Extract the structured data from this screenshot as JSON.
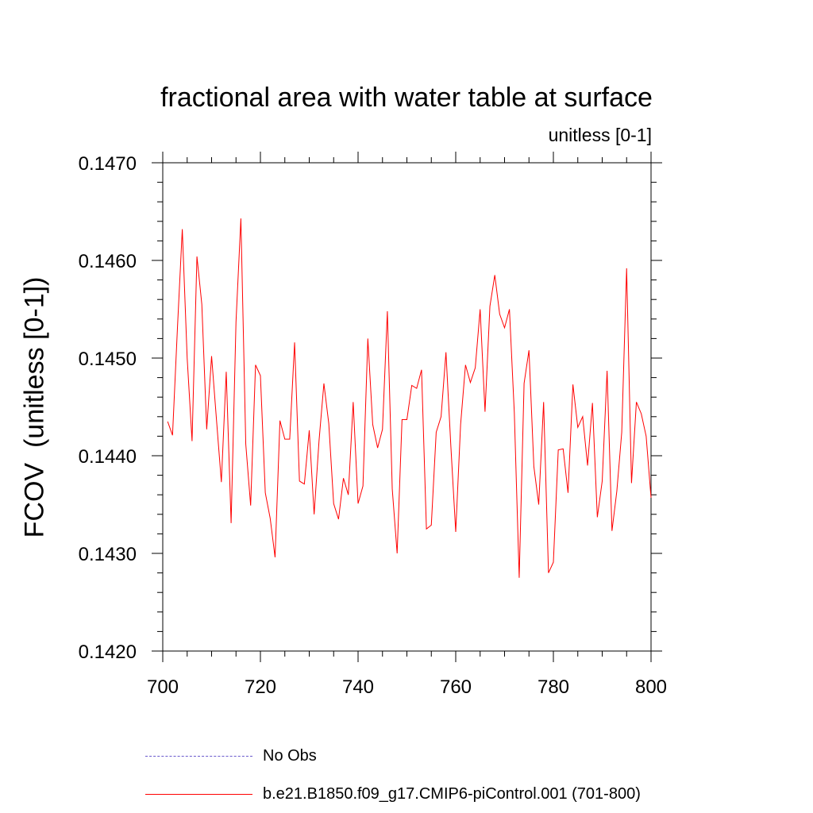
{
  "chart_data": {
    "type": "line",
    "title": "fractional area with water table at surface",
    "units_label": "unitless [0-1]",
    "ylabel": "FCOV  (unitless [0-1])",
    "xlabel": "",
    "xlim": [
      700,
      800
    ],
    "ylim": [
      0.142,
      0.147
    ],
    "x_ticks": [
      "700",
      "720",
      "740",
      "760",
      "780",
      "800"
    ],
    "y_ticks": [
      "0.1420",
      "0.1430",
      "0.1440",
      "0.1450",
      "0.1460",
      "0.1470"
    ],
    "legend": [
      {
        "name": "No Obs",
        "style": "dashed",
        "color": "#6a5acd"
      },
      {
        "name": "b.e21.B1850.f09_g17.CMIP6-piControl.001 (701-800)",
        "style": "solid",
        "color": "#ff0000"
      }
    ],
    "series": [
      {
        "name": "b.e21.B1850.f09_g17.CMIP6-piControl.001 (701-800)",
        "color": "#ff0000",
        "x": [
          701,
          702,
          703,
          704,
          705,
          706,
          707,
          708,
          709,
          710,
          711,
          712,
          713,
          714,
          715,
          716,
          717,
          718,
          719,
          720,
          721,
          722,
          723,
          724,
          725,
          726,
          727,
          728,
          729,
          730,
          731,
          732,
          733,
          734,
          735,
          736,
          737,
          738,
          739,
          740,
          741,
          742,
          743,
          744,
          745,
          746,
          747,
          748,
          749,
          750,
          751,
          752,
          753,
          754,
          755,
          756,
          757,
          758,
          759,
          760,
          761,
          762,
          763,
          764,
          765,
          766,
          767,
          768,
          769,
          770,
          771,
          772,
          773,
          774,
          775,
          776,
          777,
          778,
          779,
          780,
          781,
          782,
          783,
          784,
          785,
          786,
          787,
          788,
          789,
          790,
          791,
          792,
          793,
          794,
          795,
          796,
          797,
          798,
          799,
          800
        ],
        "values": [
          0.14435,
          0.14421,
          0.1453,
          0.14632,
          0.145,
          0.14415,
          0.14604,
          0.14555,
          0.14427,
          0.14502,
          0.14437,
          0.14373,
          0.14486,
          0.14331,
          0.14537,
          0.14643,
          0.14412,
          0.14349,
          0.14493,
          0.14482,
          0.14362,
          0.14336,
          0.14296,
          0.14436,
          0.14417,
          0.14417,
          0.14516,
          0.14374,
          0.14371,
          0.14426,
          0.1434,
          0.14415,
          0.14474,
          0.14433,
          0.14351,
          0.14335,
          0.14377,
          0.1436,
          0.14455,
          0.14351,
          0.14369,
          0.1452,
          0.14432,
          0.14408,
          0.14427,
          0.14548,
          0.14366,
          0.143,
          0.14437,
          0.14437,
          0.14472,
          0.14469,
          0.14488,
          0.14325,
          0.14329,
          0.14424,
          0.1444,
          0.14506,
          0.1441,
          0.14322,
          0.14432,
          0.14493,
          0.14475,
          0.1449,
          0.1455,
          0.14445,
          0.14553,
          0.14585,
          0.14545,
          0.14531,
          0.1455,
          0.14444,
          0.14275,
          0.14474,
          0.14508,
          0.14389,
          0.1435,
          0.14455,
          0.1428,
          0.14291,
          0.14406,
          0.14407,
          0.14362,
          0.14473,
          0.14429,
          0.1444,
          0.1439,
          0.14454,
          0.14337,
          0.14374,
          0.14487,
          0.14323,
          0.14364,
          0.14424,
          0.14592,
          0.14372,
          0.14455,
          0.14443,
          0.1442,
          0.14357
        ]
      }
    ]
  }
}
